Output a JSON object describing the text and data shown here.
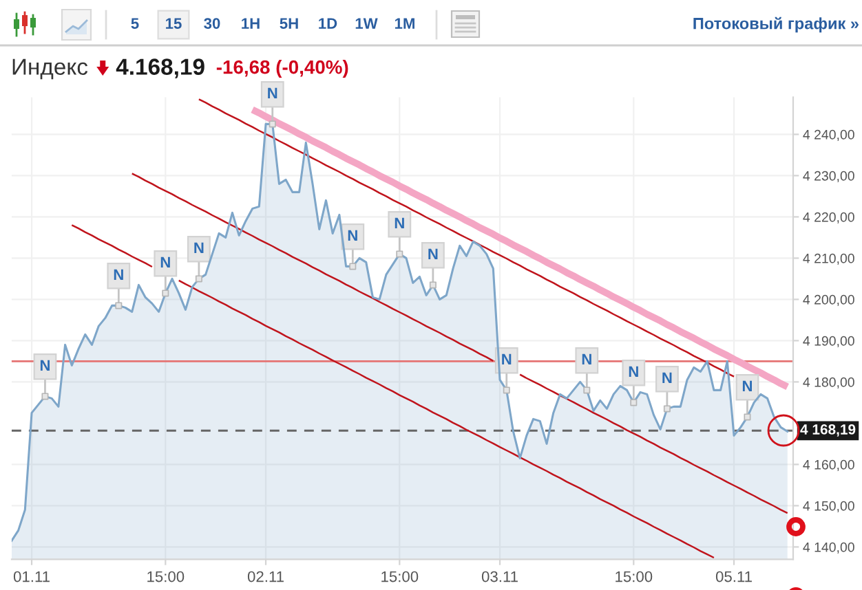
{
  "chart_data": {
    "type": "area",
    "title": "Индекс",
    "annotations": [
      "5",
      "15",
      "30",
      "1H",
      "5H",
      "1D",
      "1W",
      "1M",
      "Потоковый график »",
      "4.168,19",
      "-16,68 (-0,40%)"
    ],
    "categories": [
      null,
      null,
      null,
      "01.11",
      null,
      null,
      null,
      null,
      null,
      null,
      null,
      null,
      null,
      null,
      null,
      null,
      null,
      null,
      null,
      null,
      null,
      null,
      null,
      "15:00",
      null,
      null,
      null,
      null,
      null,
      null,
      null,
      null,
      null,
      null,
      null,
      null,
      null,
      null,
      "02.11",
      null,
      null,
      null,
      null,
      null,
      null,
      null,
      null,
      null,
      null,
      null,
      null,
      null,
      null,
      null,
      null,
      null,
      null,
      null,
      "15:00",
      null,
      null,
      null,
      null,
      null,
      null,
      null,
      null,
      null,
      null,
      null,
      null,
      null,
      null,
      "03.11",
      null,
      null,
      null,
      null,
      null,
      null,
      null,
      null,
      null,
      null,
      null,
      null,
      null,
      null,
      null,
      null,
      null,
      null,
      null,
      "15:00",
      null,
      null,
      null,
      null,
      null,
      null,
      null,
      null,
      null,
      null,
      null,
      null,
      null,
      null,
      "05.11",
      null,
      null,
      null,
      null,
      null,
      null,
      null,
      null
    ],
    "ylim": [
      4137,
      4249
    ],
    "yticks": [
      {
        "value": 4140,
        "label": "4 140,00"
      },
      {
        "value": 4150,
        "label": "4 150,00"
      },
      {
        "value": 4160,
        "label": "4 160,00"
      },
      {
        "value": 4180,
        "label": "4 180,00"
      },
      {
        "value": 4190,
        "label": "4 190,00"
      },
      {
        "value": 4200,
        "label": "4 200,00"
      },
      {
        "value": 4210,
        "label": "4 210,00"
      },
      {
        "value": 4220,
        "label": "4 220,00"
      },
      {
        "value": 4230,
        "label": "4 230,00"
      },
      {
        "value": 4240,
        "label": "4 240,00"
      }
    ],
    "grid": true,
    "ref_lines": [
      {
        "axis": "y",
        "value": 4185,
        "color": "#e57373"
      },
      {
        "axis": "y",
        "value": 4168.19,
        "label": "4 168,19",
        "color": "#666666",
        "line_style": "dashed"
      }
    ],
    "series": [
      {
        "color": "#7ea6c9",
        "values": [
          4141.5,
          4144,
          4149,
          4172.5,
          4174.5,
          4176.5,
          4176,
          4174,
          4189,
          4184,
          4188,
          4191.5,
          4189,
          4193.5,
          4195.5,
          4198.5,
          4198.5,
          4198,
          4197,
          4203.5,
          4200.5,
          4199,
          4197,
          4201.5,
          4205,
          4201.5,
          4197.5,
          4203,
          4205,
          4206,
          4211,
          4216,
          4215,
          4221,
          4215.5,
          4219,
          4222,
          4222.5,
          4242.5,
          4242.5,
          4228,
          4229,
          4226,
          4226,
          4238,
          4228,
          4217,
          4224,
          4216,
          4220.5,
          4208,
          4208,
          4210,
          4209,
          4200.5,
          4200,
          4206,
          4208.5,
          4211,
          4210,
          4204,
          4205.5,
          4201,
          4203.5,
          4200,
          4201,
          4207.5,
          4213,
          4210.5,
          4214,
          4213,
          4211,
          4207.5,
          4180.5,
          4178,
          4168,
          4161.5,
          4167,
          4171,
          4170.5,
          4165,
          4172.5,
          4177,
          4176,
          4178,
          4180,
          4178,
          4173,
          4175.5,
          4173.5,
          4177,
          4179,
          4178,
          4175,
          4177.5,
          4177,
          4172,
          4168.5,
          4173.5,
          4174,
          4174,
          4180.5,
          4183.5,
          4182.5,
          4185,
          4178,
          4178,
          4185,
          4167,
          4169,
          4171.5,
          4175,
          4177,
          4176,
          4171.5,
          4169,
          4168
        ]
      },
      {
        "type": "line",
        "color": "#f4a6c4",
        "values": [
          null,
          null,
          null,
          null,
          null,
          null,
          null,
          null,
          null,
          null,
          null,
          null,
          null,
          null,
          null,
          null,
          null,
          null,
          null,
          null,
          null,
          null,
          null,
          null,
          null,
          null,
          null,
          null,
          null,
          null,
          null,
          null,
          null,
          null,
          null,
          null,
          4246.0,
          4245.2,
          4244.3,
          4243.5,
          4242.6,
          4241.8,
          4241.0,
          4240.1,
          4239.3,
          4238.4,
          4237.6,
          4236.8,
          4235.9,
          4235.1,
          4234.2,
          4233.4,
          4232.6,
          4231.7,
          4230.9,
          4230.0,
          4229.2,
          4228.4,
          4227.5,
          4226.7,
          4225.8,
          4225.0,
          4224.2,
          4223.3,
          4222.5,
          4221.6,
          4220.8,
          4220.0,
          4219.1,
          4218.3,
          4217.4,
          4216.6,
          4215.8,
          4214.9,
          4214.1,
          4213.2,
          4212.4,
          4211.6,
          4210.7,
          4209.9,
          4209.0,
          4208.2,
          4207.4,
          4206.5,
          4205.7,
          4204.8,
          4204.0,
          4203.2,
          4202.3,
          4201.5,
          4200.6,
          4199.8,
          4199.0,
          4198.1,
          4197.3,
          4196.4,
          4195.6,
          4194.8,
          4193.9,
          4193.1,
          4192.2,
          4191.4,
          4190.6,
          4189.7,
          4188.9,
          4188.0,
          4187.2,
          4186.4,
          4185.5,
          4184.7,
          4183.8,
          4183.0,
          4182.2,
          4181.3,
          4180.5,
          4179.6,
          4178.8
        ]
      },
      {
        "type": "line",
        "color": "#c0141c",
        "values": [
          null,
          null,
          null,
          null,
          null,
          null,
          null,
          null,
          null,
          null,
          null,
          null,
          null,
          null,
          null,
          null,
          null,
          null,
          null,
          null,
          null,
          null,
          null,
          null,
          null,
          null,
          null,
          null,
          4248.5,
          4247.7,
          4246.8,
          4246.0,
          4245.1,
          4244.3,
          4243.5,
          4242.6,
          4241.8,
          4240.9,
          4240.1,
          4239.3,
          4238.4,
          4237.6,
          4236.7,
          4235.9,
          4235.1,
          4234.2,
          4233.4,
          4232.5,
          4231.7,
          4230.9,
          4230.0,
          4229.2,
          4228.3,
          4227.5,
          4226.7,
          4225.8,
          4225.0,
          4224.1,
          4223.3,
          4222.5,
          4221.6,
          4220.8,
          4219.9,
          4219.1,
          4218.3,
          4217.4,
          4216.6,
          4215.7,
          4214.9,
          4214.1,
          4213.2,
          4212.4,
          4211.5,
          4210.7,
          4209.9,
          4209.0,
          4208.2,
          4207.3,
          4206.5,
          4205.7,
          4204.8,
          4204.0,
          4203.1,
          4202.3,
          4201.5,
          4200.6,
          4199.8,
          4198.9,
          4198.1,
          4197.3,
          4196.4,
          4195.6,
          4194.7,
          4193.9,
          4193.1,
          4192.2,
          4191.4,
          4190.5,
          4189.7,
          4188.9,
          4188.0,
          4187.2,
          4186.3,
          4185.5,
          4184.7,
          4183.8,
          4183.0,
          4182.1,
          4181.3,
          null,
          null,
          null,
          null,
          null,
          null,
          null,
          null
        ]
      },
      {
        "type": "line",
        "color": "#c0141c",
        "values": [
          null,
          null,
          null,
          null,
          null,
          null,
          null,
          null,
          null,
          null,
          null,
          null,
          null,
          null,
          null,
          null,
          null,
          null,
          4230.5,
          4229.7,
          4228.8,
          4228.0,
          4227.1,
          4226.3,
          4225.5,
          4224.6,
          4223.8,
          4222.9,
          4222.1,
          4221.3,
          4220.4,
          4219.6,
          4218.7,
          4217.9,
          4217.1,
          4216.2,
          4215.4,
          4214.5,
          4213.7,
          4212.9,
          4212.0,
          4211.2,
          4210.3,
          4209.5,
          4208.7,
          4207.8,
          4207.0,
          4206.1,
          4205.3,
          4204.5,
          4203.6,
          4202.8,
          4201.9,
          4201.1,
          4200.3,
          4199.4,
          4198.6,
          4197.7,
          4196.9,
          4196.1,
          4195.2,
          4194.4,
          4193.5,
          4192.7,
          4191.9,
          4191.0,
          4190.2,
          4189.3,
          4188.5,
          4187.7,
          4186.8,
          4186.0,
          4185.1,
          null,
          null,
          null,
          4181.8,
          4180.9,
          4180.1,
          4179.3,
          4178.4,
          4177.6,
          4176.7,
          4175.9,
          4175.1,
          4174.2,
          4173.4,
          4172.5,
          4171.7,
          4170.9,
          4170.0,
          4169.2,
          4168.3,
          4167.5,
          4166.7,
          4165.8,
          4165.0,
          4164.1,
          4163.3,
          4162.5,
          4161.6,
          4160.8,
          4159.9,
          4159.1,
          4158.3,
          4157.4,
          4156.6,
          4155.7,
          4154.9,
          4154.1,
          4153.2,
          4152.4,
          4151.5,
          4150.7,
          4149.9,
          4149.0,
          4148.2
        ]
      },
      {
        "type": "line",
        "color": "#c0141c",
        "values": [
          null,
          null,
          null,
          null,
          null,
          null,
          null,
          null,
          null,
          4218.0,
          4217.2,
          4216.3,
          4215.5,
          4214.6,
          4213.8,
          4213.0,
          4212.1,
          4211.3,
          4210.4,
          4209.6,
          4208.8,
          4207.9,
          null,
          null,
          null,
          4204.6,
          4203.7,
          4202.9,
          4202.0,
          4201.2,
          4200.4,
          4199.5,
          4198.7,
          4197.8,
          4197.0,
          4196.2,
          4195.3,
          4194.5,
          4193.6,
          4192.8,
          4192.0,
          4191.1,
          4190.3,
          4189.4,
          4188.6,
          4187.8,
          4186.9,
          4186.1,
          4185.2,
          4184.4,
          4183.6,
          4182.7,
          4181.9,
          4181.0,
          4180.2,
          4179.4,
          4178.5,
          4177.7,
          4176.8,
          4176.0,
          4175.2,
          4174.3,
          4173.5,
          4172.6,
          4171.8,
          4171.0,
          4170.1,
          4169.3,
          4168.4,
          4167.6,
          4166.8,
          4165.9,
          4165.1,
          4164.2,
          4163.4,
          4162.6,
          4161.7,
          4160.9,
          4160.0,
          4159.2,
          4158.4,
          4157.5,
          4156.7,
          4155.8,
          4155.0,
          4154.2,
          4153.3,
          4152.5,
          4151.6,
          4150.8,
          4150.0,
          4149.1,
          4148.3,
          4147.4,
          4146.6,
          4145.8,
          4144.9,
          4144.1,
          4143.2,
          4142.4,
          4141.6,
          4140.7,
          4139.9,
          4139.0,
          4138.2,
          4137.4,
          null,
          null,
          null,
          null,
          null,
          null,
          null,
          null,
          null,
          null,
          null
        ]
      },
      {
        "type": "scatter",
        "name": "N",
        "color": "#e6e6e6",
        "values": [
          null,
          null,
          null,
          null,
          null,
          4176.5,
          null,
          null,
          null,
          null,
          null,
          null,
          null,
          null,
          null,
          null,
          4198.5,
          null,
          null,
          null,
          null,
          null,
          null,
          4201.5,
          null,
          null,
          null,
          null,
          4205,
          null,
          null,
          null,
          null,
          null,
          null,
          null,
          null,
          null,
          null,
          4242.5,
          null,
          null,
          null,
          null,
          null,
          null,
          null,
          null,
          null,
          null,
          null,
          4208,
          null,
          null,
          null,
          null,
          null,
          null,
          4211,
          null,
          null,
          null,
          null,
          4203.5,
          null,
          null,
          null,
          null,
          null,
          null,
          null,
          null,
          null,
          null,
          4178,
          null,
          null,
          null,
          null,
          null,
          null,
          null,
          null,
          null,
          null,
          null,
          4178,
          null,
          null,
          null,
          null,
          null,
          null,
          4175,
          null,
          null,
          null,
          null,
          4173.5,
          null,
          null,
          null,
          null,
          null,
          null,
          null,
          null,
          null,
          null,
          null,
          4171.5,
          null,
          null,
          null,
          null,
          null,
          null
        ]
      }
    ]
  }
}
